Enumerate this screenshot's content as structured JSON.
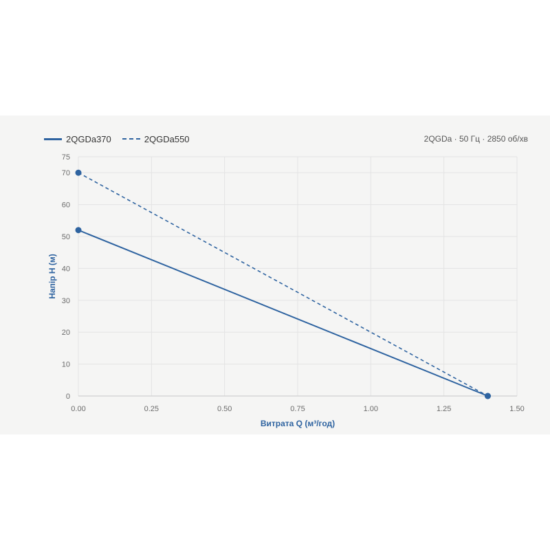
{
  "chart_data": {
    "type": "line",
    "subtitle": "2QGDa · 50 Гц · 2850 об/хв",
    "xlabel": "Витрата Q (м³/год)",
    "ylabel": "Напір H (м)",
    "xlim": [
      0,
      1.5
    ],
    "ylim": [
      0,
      75
    ],
    "x_ticks": [
      "0.00",
      "0.25",
      "0.50",
      "0.75",
      "1.00",
      "1.25",
      "1.50"
    ],
    "y_ticks": [
      "0",
      "10",
      "20",
      "30",
      "40",
      "50",
      "60",
      "70",
      "75"
    ],
    "grid": true,
    "legend_position": "top-left",
    "color": "#2e63a0",
    "series": [
      {
        "name": "2QGDa370",
        "style": "solid",
        "x": [
          0,
          1.4
        ],
        "y": [
          52,
          0
        ]
      },
      {
        "name": "2QGDa550",
        "style": "dashed",
        "x": [
          0,
          1.4
        ],
        "y": [
          70,
          0
        ]
      }
    ]
  }
}
